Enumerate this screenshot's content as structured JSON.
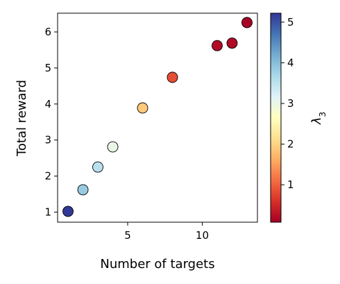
{
  "chart_data": {
    "type": "scatter",
    "xlabel": "Number of targets",
    "ylabel": "Total reward",
    "xlim": [
      0.3,
      13.7
    ],
    "ylim": [
      0.72,
      6.52
    ],
    "xticks": [
      5,
      10
    ],
    "yticks": [
      1,
      2,
      3,
      4,
      5,
      6
    ],
    "grid": false,
    "legend": "none",
    "colorbar": {
      "label": "λ3",
      "label_base": "λ",
      "label_sub": "3",
      "range": [
        0.08,
        5.22
      ],
      "ticks": [
        1,
        2,
        3,
        4,
        5
      ],
      "colormap": "RdYlBu",
      "colors": [
        "#a50026",
        "#d73027",
        "#f46d43",
        "#fdae61",
        "#fee090",
        "#ffffbf",
        "#e0f3f8",
        "#abd9e9",
        "#74add1",
        "#4575b4",
        "#313695"
      ]
    },
    "points": [
      {
        "x": 1,
        "y": 1.02,
        "c": 5.2
      },
      {
        "x": 2,
        "y": 1.62,
        "c": 3.85
      },
      {
        "x": 3,
        "y": 2.25,
        "c": 3.55
      },
      {
        "x": 4,
        "y": 2.81,
        "c": 3.0
      },
      {
        "x": 6,
        "y": 3.89,
        "c": 1.9
      },
      {
        "x": 8,
        "y": 4.74,
        "c": 0.85
      },
      {
        "x": 11,
        "y": 5.62,
        "c": 0.2
      },
      {
        "x": 12,
        "y": 5.69,
        "c": 0.2
      },
      {
        "x": 13,
        "y": 6.26,
        "c": 0.1
      }
    ]
  }
}
